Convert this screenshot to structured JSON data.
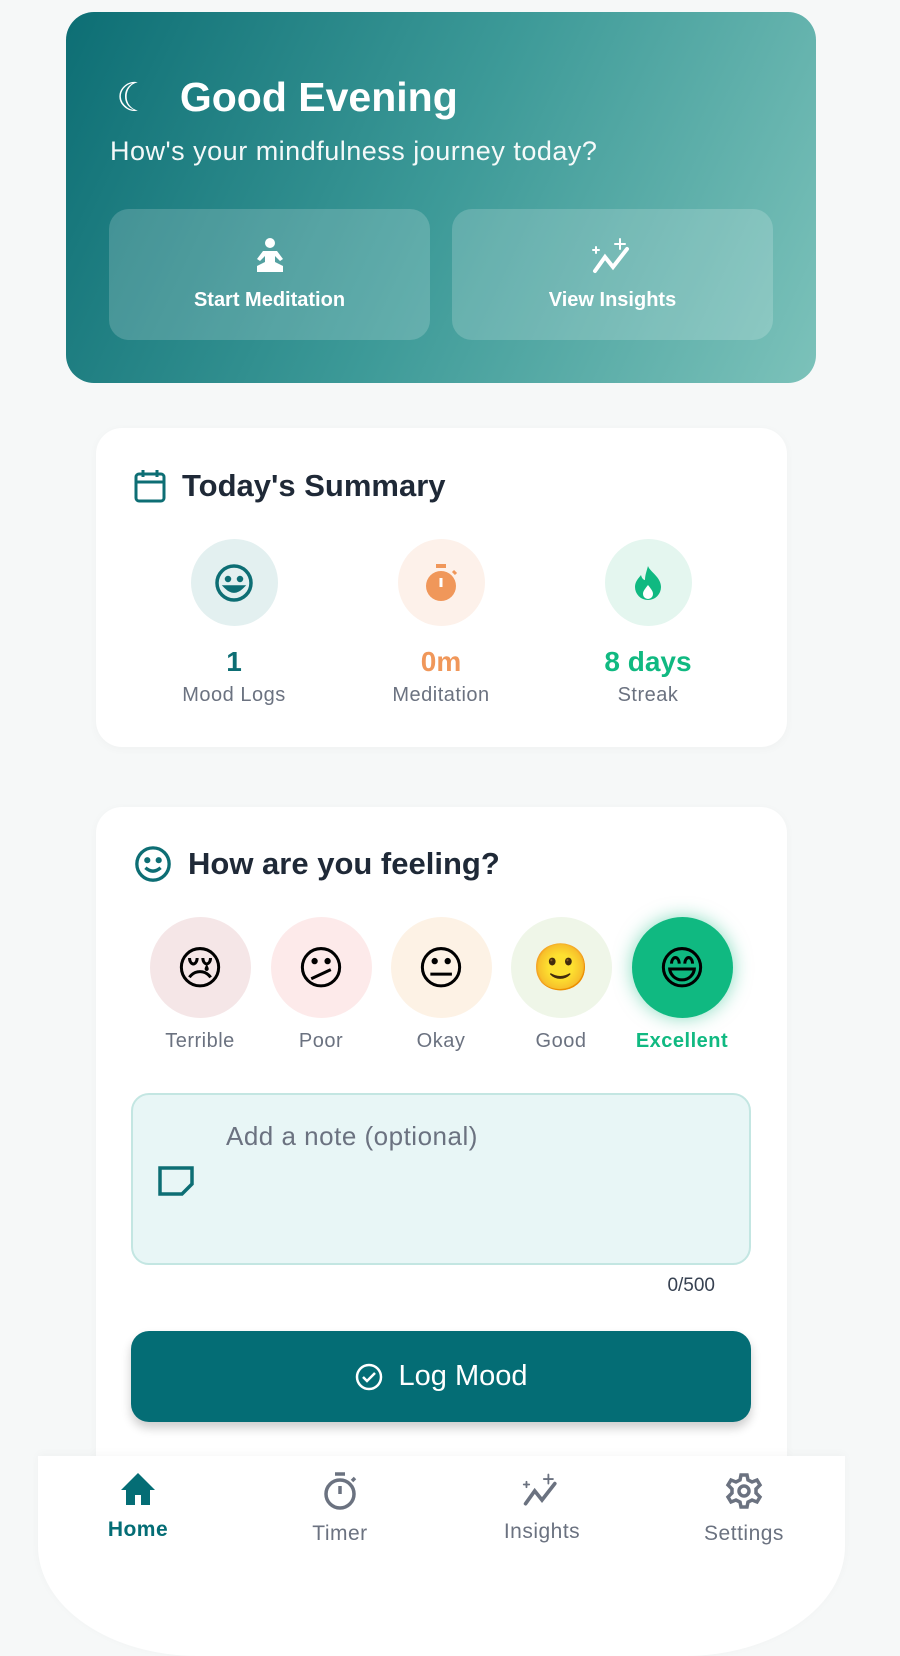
{
  "hero": {
    "icon": "moon-icon",
    "title": "Good Evening",
    "subtitle": "How's your mindfulness journey today?",
    "buttons": [
      {
        "label": "Start Meditation",
        "icon": "meditation-icon"
      },
      {
        "label": "View Insights",
        "icon": "insights-icon"
      }
    ]
  },
  "summary": {
    "title": "Today's Summary",
    "icon": "calendar-icon",
    "stats": [
      {
        "value": "1",
        "label": "Mood Logs",
        "icon": "smile-icon",
        "color": "#0d6e74"
      },
      {
        "value": "0m",
        "label": "Meditation",
        "icon": "stopwatch-icon",
        "color": "#f0975a"
      },
      {
        "value": "8 days",
        "label": "Streak",
        "icon": "flame-icon",
        "color": "#10b981"
      }
    ]
  },
  "mood": {
    "title": "How are you feeling?",
    "icon": "smile-icon",
    "options": [
      {
        "emoji": "😢",
        "label": "Terrible"
      },
      {
        "emoji": "😕",
        "label": "Poor"
      },
      {
        "emoji": "😐",
        "label": "Okay"
      },
      {
        "emoji": "🙂",
        "label": "Good"
      },
      {
        "emoji": "😄",
        "label": "Excellent"
      }
    ],
    "selected": "Excellent",
    "note_placeholder": "Add a note (optional)",
    "note_value": "",
    "counter": "0/500",
    "submit_label": "Log Mood"
  },
  "nav": {
    "items": [
      {
        "label": "Home",
        "icon": "home-icon"
      },
      {
        "label": "Timer",
        "icon": "timer-icon"
      },
      {
        "label": "Insights",
        "icon": "insights-icon"
      },
      {
        "label": "Settings",
        "icon": "gear-icon"
      }
    ],
    "active": "Home"
  },
  "colors": {
    "primary": "#046d75",
    "accent_green": "#10b981",
    "accent_orange": "#f0975a"
  }
}
